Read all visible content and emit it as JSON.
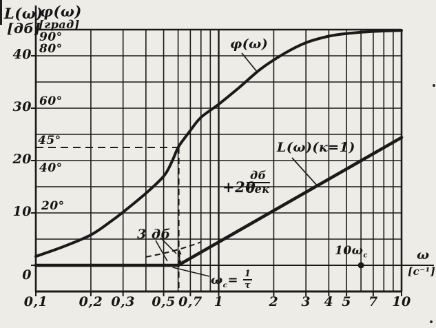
{
  "figure": {
    "paper_color": "#eeece7",
    "ink_color": "#1a1a1a"
  },
  "chart_data": {
    "type": "line",
    "x_axis": {
      "label": "ω",
      "unit": "[c⁻¹]",
      "scale": "log",
      "min": 0.1,
      "max": 10,
      "gridlines": [
        0.1,
        0.2,
        0.3,
        0.4,
        0.5,
        0.6,
        0.7,
        0.8,
        0.9,
        1,
        2,
        3,
        4,
        5,
        6,
        7,
        8,
        9,
        10
      ],
      "ticks": [
        {
          "v": 0.1,
          "label": "0,1"
        },
        {
          "v": 0.2,
          "label": "0,2"
        },
        {
          "v": 0.3,
          "label": "0,3"
        },
        {
          "v": 0.5,
          "label": "0,5"
        },
        {
          "v": 0.7,
          "label": "0,7"
        },
        {
          "v": 1,
          "label": "1"
        },
        {
          "v": 2,
          "label": "2"
        },
        {
          "v": 3,
          "label": "3"
        },
        {
          "v": 4,
          "label": "4"
        },
        {
          "v": 5,
          "label": "5"
        },
        {
          "v": 7,
          "label": "7"
        },
        {
          "v": 10,
          "label": "10"
        }
      ]
    },
    "y_axis_db": {
      "label": "L(ω)",
      "unit": "[дб]",
      "min": -5,
      "max": 45,
      "gridline_step": 5,
      "ticks": [
        {
          "v": 40,
          "label": "40"
        },
        {
          "v": 30,
          "label": "30"
        },
        {
          "v": 20,
          "label": "20"
        },
        {
          "v": 10,
          "label": "10"
        },
        {
          "v": 0,
          "label": "0"
        }
      ]
    },
    "y_axis_deg": {
      "label": "φ(ω)",
      "unit": "[град]",
      "scale_note": "φ[град] = 2 × L[дб]",
      "labels": [
        {
          "text": "90°",
          "db": 45,
          "dy": 3
        },
        {
          "text": "80°",
          "db": 40,
          "dy": -18
        },
        {
          "text": "60°",
          "db": 30,
          "dy": -18
        },
        {
          "text": "45°",
          "db": 22.5,
          "dy": -18
        },
        {
          "text": "40°",
          "db": 20,
          "dy": 3
        },
        {
          "text": "20°",
          "db": 10,
          "dy": -18
        }
      ]
    },
    "guides": {
      "omega_c": 0.6,
      "phase_45_level_db": 22.5,
      "gap_at_corner_db": 3,
      "ten_omega_c": 6
    },
    "series": [
      {
        "name": "φ(ω)",
        "kind": "phase",
        "points_omega_deg": [
          [
            0.1,
            3.4
          ],
          [
            0.14,
            7
          ],
          [
            0.2,
            11.6
          ],
          [
            0.26,
            17
          ],
          [
            0.3,
            20.3
          ],
          [
            0.4,
            27.5
          ],
          [
            0.5,
            34
          ],
          [
            0.55,
            39
          ],
          [
            0.6,
            45
          ],
          [
            0.65,
            48.5
          ],
          [
            0.7,
            51.5
          ],
          [
            0.8,
            56.5
          ],
          [
            1.0,
            61.5
          ],
          [
            1.3,
            68
          ],
          [
            1.7,
            75
          ],
          [
            2.3,
            81
          ],
          [
            3,
            85
          ],
          [
            4,
            87.5
          ],
          [
            5,
            88.5
          ],
          [
            7,
            89.3
          ],
          [
            10,
            89.7
          ]
        ]
      },
      {
        "name": "L(ω)(к=1)",
        "kind": "asymptote",
        "corner_omega": 0.6,
        "slope_db_per_decade": 20,
        "points_omega_db": [
          [
            0.1,
            0
          ],
          [
            0.6,
            0
          ],
          [
            10,
            24.4
          ]
        ]
      },
      {
        "name": "L actual (dashed)",
        "kind": "dashed-actual",
        "omega_range": [
          0.4,
          0.8
        ]
      }
    ],
    "annotations": {
      "phi_curve": "φ(ω)",
      "l_curve": "L(ω)(к=1)",
      "slope_plus": "+20",
      "slope_num": "дб",
      "slope_den": "дек",
      "gain_3db": "3 дб",
      "omega_c_main": "ω",
      "omega_c_sub": "c",
      "omega_c_eq": "=",
      "omega_c_num": "1",
      "omega_c_den": "τ",
      "ten_omega_c_main": "10ω",
      "ten_omega_c_sub": "c",
      "axis_omega": "ω",
      "axis_omega_unit": "[c⁻¹]"
    }
  }
}
